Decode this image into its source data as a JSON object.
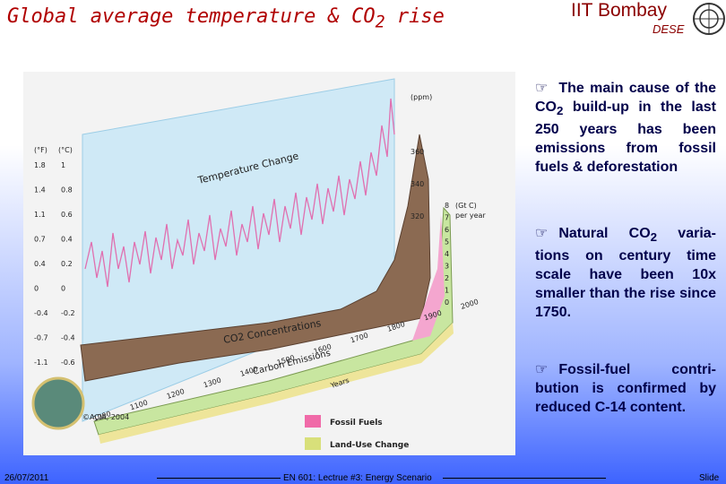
{
  "header": {
    "title": "Global average temperature & CO",
    "title_sub": "2",
    "title_end": " rise",
    "institute": "IIT Bombay",
    "department": "DESE"
  },
  "figure": {
    "temperature_label": "Temperature Change",
    "co2_label": "CO2 Concentrations",
    "emissions_label": "Carbon Emissions",
    "f_unit": "(°F)",
    "c_unit": "(°C)",
    "ppm_unit": "(ppm)",
    "gtc_unit": "(Gt C)",
    "gtc_unit2": "per year",
    "f_ticks": [
      "1.8",
      "1.4",
      "1.1",
      "0.7",
      "0.4",
      "0",
      "-0.4",
      "-0.7",
      "-1.1"
    ],
    "c_ticks": [
      "1",
      "0.8",
      "0.6",
      "0.4",
      "0.2",
      "0",
      "-0.2",
      "-0.4",
      "-0.6"
    ],
    "ppm_ticks": [
      "360",
      "340",
      "320"
    ],
    "gtc_ticks": [
      "8",
      "7",
      "6",
      "5",
      "4",
      "3",
      "2",
      "1",
      "0"
    ],
    "years": [
      "1000",
      "1100",
      "1200",
      "1300",
      "1400",
      "1500",
      "1600",
      "1700",
      "1800",
      "1900",
      "2000"
    ],
    "years_label": "Years",
    "credit": "©ACIA, 2004",
    "legend": [
      "Fossil Fuels",
      "Land-Use Change"
    ]
  },
  "bullets": [
    {
      "symbol": "☞",
      "text": "The main cause of the CO",
      "sub": "2",
      "rest": " build-up in the last 250 years has been emissions from fossil fuels & deforestation"
    },
    {
      "symbol": "☞",
      "text": "Natural CO",
      "sub": "2",
      "rest": " varia-tions on century time scale have been 10x smaller than the rise since 1750."
    },
    {
      "symbol": "☞",
      "text": "Fossil-fuel contri-bution is confirmed by reduced C-14 content."
    }
  ],
  "footer": {
    "date": "26/07/2011",
    "course": "EN 601: Lectrue #3: Energy Scenario",
    "slide": "Slide"
  }
}
